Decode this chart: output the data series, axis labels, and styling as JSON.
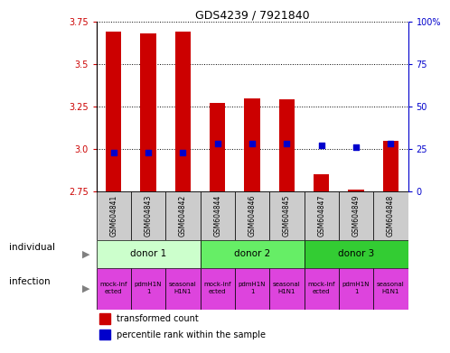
{
  "title": "GDS4239 / 7921840",
  "samples": [
    "GSM604841",
    "GSM604843",
    "GSM604842",
    "GSM604844",
    "GSM604846",
    "GSM604845",
    "GSM604847",
    "GSM604849",
    "GSM604848"
  ],
  "bar_values": [
    3.69,
    3.68,
    3.69,
    3.27,
    3.3,
    3.29,
    2.85,
    2.76,
    3.05
  ],
  "bar_bottom": 2.75,
  "percentile_values": [
    23,
    23,
    23,
    28,
    28,
    28,
    27,
    26,
    28
  ],
  "ylim": [
    2.75,
    3.75
  ],
  "y2lim": [
    0,
    100
  ],
  "yticks": [
    2.75,
    3.0,
    3.25,
    3.5,
    3.75
  ],
  "y2ticks": [
    0,
    25,
    50,
    75,
    100
  ],
  "bar_color": "#cc0000",
  "dot_color": "#0000cc",
  "grid_color": "#000000",
  "ylabel_color": "#cc0000",
  "y2label_color": "#0000cc",
  "individual_labels": [
    "donor 1",
    "donor 2",
    "donor 3"
  ],
  "individual_colors": [
    "#ccffcc",
    "#66ee66",
    "#33cc33"
  ],
  "infection_color": "#dd44dd",
  "gsm_bg_color": "#cccccc",
  "legend_bar_color": "#cc0000",
  "legend_dot_color": "#0000cc"
}
